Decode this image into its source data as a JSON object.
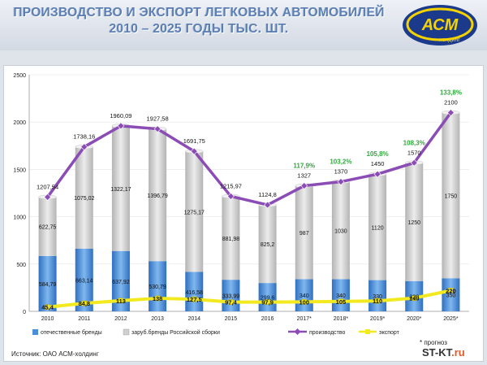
{
  "title_line1": "ПРОИЗВОДСТВО И ЭКСПОРТ ЛЕГКОВЫХ АВТОМОБИЛЕЙ",
  "title_line2": "2010 – 2025 ГОДЫ ТЫС. ШТ.",
  "logo": {
    "text": "АСМ",
    "subtext": "холдинг",
    "colors": {
      "blue": "#1b3a8c",
      "yellow": "#f4d300"
    }
  },
  "source": "Источник: ОАО АСМ-холдинг",
  "note": "* прогноз",
  "watermark": {
    "main": "ST-KT",
    "suffix": ".ru"
  },
  "chart_data": {
    "type": "bar",
    "categories": [
      "2010",
      "2011",
      "2012",
      "2013",
      "2014",
      "2015",
      "2016",
      "2017*",
      "2018*",
      "2019*",
      "2020*",
      "2025*"
    ],
    "ylim": [
      0,
      2500
    ],
    "yticks": [
      0,
      500,
      1000,
      1500,
      2000,
      2500
    ],
    "series": [
      {
        "name": "отечественные бренды",
        "kind": "bar",
        "color": "#4a8fd9",
        "values": [
          584.79,
          663.14,
          637.92,
          530.79,
          416.58,
          333.99,
          299.6,
          340,
          340,
          330,
          320,
          350
        ],
        "labels": [
          "584,79",
          "663,14",
          "637,92",
          "530,79",
          "416,58",
          "333,99",
          "299,6",
          "340",
          "340",
          "330",
          "320",
          "350"
        ]
      },
      {
        "name": "заруб.бренды Российской сборки",
        "kind": "bar",
        "color": "#cfcfcf",
        "values": [
          622.75,
          1075.02,
          1322.17,
          1396.79,
          1275.17,
          881.98,
          825.2,
          987,
          1030,
          1120,
          1250,
          1750
        ],
        "labels": [
          "622,75",
          "1075,02",
          "1322,17",
          "1396,79",
          "1275,17",
          "881,98",
          "825,2",
          "987",
          "1030",
          "1120",
          "1250",
          "1750"
        ]
      },
      {
        "name": "производство",
        "kind": "line",
        "color": "#8b4cb5",
        "values": [
          1207.54,
          1738.16,
          1960.09,
          1927.58,
          1691.75,
          1215.97,
          1124.8,
          1327,
          1370,
          1450,
          1570,
          2100
        ],
        "labels": [
          "1207,54",
          "1738,16",
          "1960,09",
          "1927,58",
          "1691,75",
          "1215,97",
          "1124,8",
          "1327",
          "1370",
          "1450",
          "1570",
          "2100"
        ]
      },
      {
        "name": "экспорт",
        "kind": "line",
        "color": "#f2ea1e",
        "values": [
          45.4,
          84.8,
          113,
          138,
          127.5,
          97.4,
          97.9,
          100,
          105,
          110,
          140,
          220
        ],
        "labels": [
          "45,4",
          "84,8",
          "113",
          "138",
          "127,5",
          "97,4",
          "97,9",
          "100",
          "105",
          "110",
          "140",
          "220"
        ]
      }
    ],
    "annotations": [
      {
        "category": "2017*",
        "text": "117,9%"
      },
      {
        "category": "2018*",
        "text": "103,2%"
      },
      {
        "category": "2019*",
        "text": "105,8%"
      },
      {
        "category": "2020*",
        "text": "108,3%"
      },
      {
        "category": "2025*",
        "text": "133,8%"
      }
    ],
    "annotation_color": "#2eaa3c",
    "legend_position": "bottom"
  }
}
